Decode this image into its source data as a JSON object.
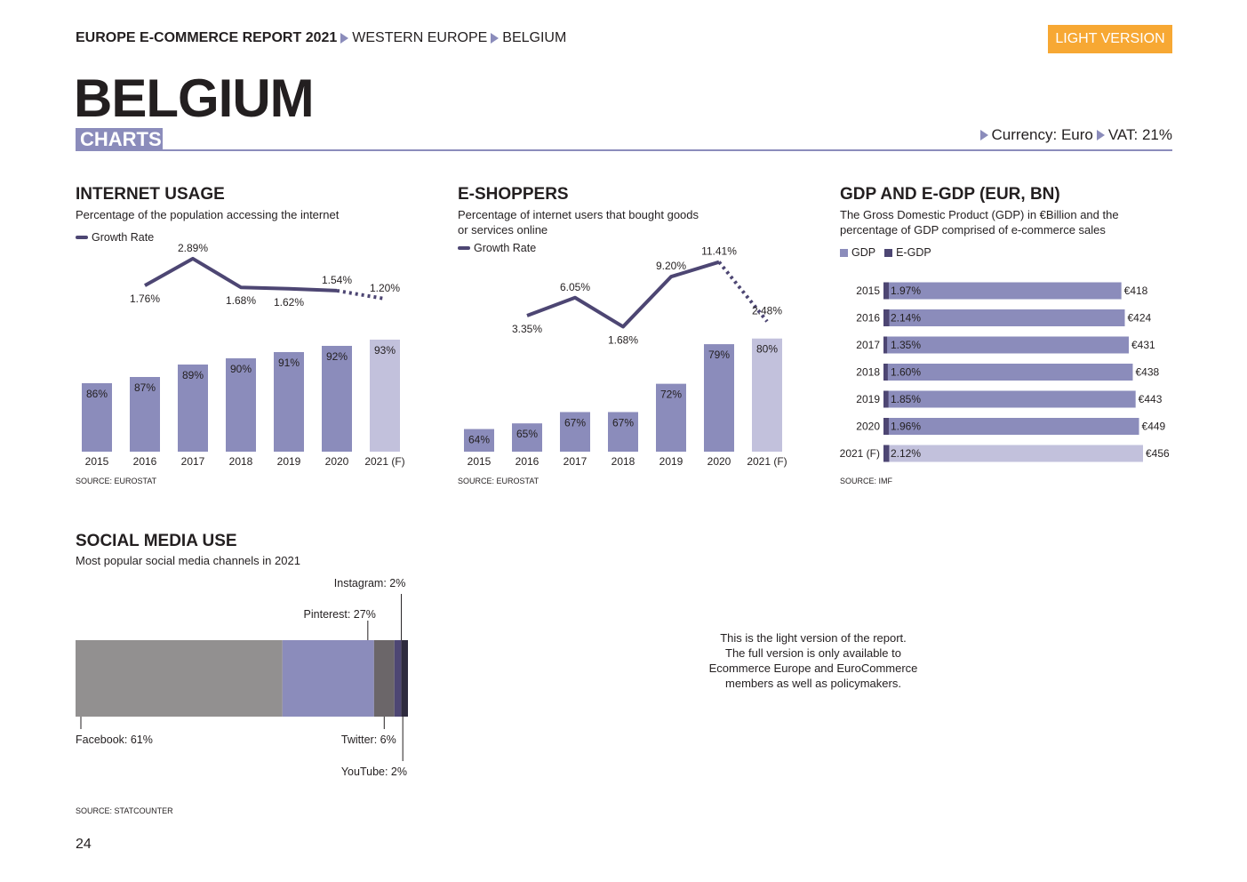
{
  "header": {
    "report_title": "EUROPE E-COMMERCE REPORT 2021",
    "crumb_region": "WESTERN EUROPE",
    "crumb_country": "BELGIUM",
    "badge": "LIGHT VERSION",
    "page_title": "BELGIUM",
    "section_tag": "CHARTS",
    "currency": "Currency: Euro",
    "vat": "VAT: 21%"
  },
  "internet_usage": {
    "title": "INTERNET USAGE",
    "subtitle": "Percentage of the population accessing the internet",
    "legend": "Growth Rate",
    "source": "SOURCE: EUROSTAT"
  },
  "eshoppers": {
    "title": "E-SHOPPERS",
    "subtitle_line1": "Percentage of internet users that bought goods",
    "subtitle_line2": "or services online",
    "legend": "Growth Rate",
    "source": "SOURCE: EUROSTAT"
  },
  "gdp": {
    "title": "GDP AND E-GDP (EUR, BN)",
    "subtitle_line1": "The Gross Domestic Product (GDP) in €Billion and the",
    "subtitle_line2": "percentage of GDP comprised of e-commerce sales",
    "legend_gdp": "GDP",
    "legend_egdp": "E-GDP",
    "source": "SOURCE: IMF"
  },
  "social": {
    "title": "SOCIAL MEDIA USE",
    "subtitle": "Most popular social media channels in 2021",
    "source": "SOURCE: STATCOUNTER"
  },
  "note": {
    "line1": "This is the light version of the report.",
    "line2": "The full version is only available to",
    "line3": "Ecommerce Europe and EuroCommerce",
    "line4": "members as well as policymakers."
  },
  "page_number": "24",
  "colors": {
    "bar": "#8b8cbb",
    "bar_forecast": "#c2c1dc",
    "line": "#4d4673",
    "accent": "#f7a833"
  },
  "chart_data": [
    {
      "id": "internet_usage",
      "type": "bar",
      "categories": [
        "2015",
        "2016",
        "2017",
        "2018",
        "2019",
        "2020",
        "2021 (F)"
      ],
      "values": [
        86,
        87,
        89,
        90,
        91,
        92,
        93
      ],
      "value_labels": [
        "86%",
        "87%",
        "89%",
        "90%",
        "91%",
        "92%",
        "93%"
      ],
      "forecast_index": 6,
      "ylim": [
        75,
        95
      ],
      "line_series": {
        "name": "Growth Rate",
        "categories": [
          "2016",
          "2017",
          "2018",
          "2019",
          "2020",
          "2021 (F)"
        ],
        "values": [
          1.76,
          2.89,
          1.68,
          1.62,
          1.54,
          1.2
        ],
        "labels": [
          "1.76%",
          "2.89%",
          "1.68%",
          "1.62%",
          "1.54%",
          "1.20%"
        ],
        "label_pos": [
          "below",
          "above",
          "below",
          "below",
          "above",
          "above"
        ]
      }
    },
    {
      "id": "eshoppers",
      "type": "bar",
      "categories": [
        "2015",
        "2016",
        "2017",
        "2018",
        "2019",
        "2020",
        "2021 (F)"
      ],
      "values": [
        64,
        65,
        67,
        67,
        72,
        79,
        80
      ],
      "value_labels": [
        "64%",
        "65%",
        "67%",
        "67%",
        "72%",
        "79%",
        "80%"
      ],
      "forecast_index": 6,
      "ylim": [
        60,
        82
      ],
      "line_series": {
        "name": "Growth Rate",
        "categories": [
          "2016",
          "2017",
          "2018",
          "2019",
          "2020",
          "2021 (F)"
        ],
        "values": [
          3.35,
          6.05,
          1.68,
          9.2,
          11.41,
          2.48
        ],
        "labels": [
          "3.35%",
          "6.05%",
          "1.68%",
          "9.20%",
          "11.41%",
          "2.48%"
        ],
        "label_pos": [
          "below",
          "above",
          "below",
          "above",
          "above",
          "above"
        ]
      }
    },
    {
      "id": "gdp",
      "type": "bar",
      "orientation": "horizontal",
      "categories": [
        "2015",
        "2016",
        "2017",
        "2018",
        "2019",
        "2020",
        "2021 (F)"
      ],
      "series": [
        {
          "name": "GDP",
          "values": [
            418,
            424,
            431,
            438,
            443,
            449,
            456
          ],
          "labels": [
            "€418",
            "€424",
            "€431",
            "€438",
            "€443",
            "€449",
            "€456"
          ]
        },
        {
          "name": "E-GDP",
          "values": [
            1.97,
            2.14,
            1.35,
            1.6,
            1.85,
            1.96,
            2.12
          ],
          "labels": [
            "1.97%",
            "2.14%",
            "1.35%",
            "1.60%",
            "1.85%",
            "1.96%",
            "2.12%"
          ]
        }
      ],
      "forecast_index": 6
    },
    {
      "id": "social",
      "type": "bar",
      "orientation": "stacked-horizontal",
      "categories": [
        "Facebook",
        "Pinterest",
        "Twitter",
        "Instagram",
        "YouTube"
      ],
      "values": [
        61,
        27,
        6,
        2,
        2
      ],
      "labels": [
        "Facebook: 61%",
        "Pinterest: 27%",
        "Twitter: 6%",
        "Instagram: 2%",
        "YouTube: 2%"
      ],
      "colors": [
        "#929090",
        "#8b8cbb",
        "#6b6669",
        "#4d4673",
        "#2e2b3e"
      ]
    }
  ]
}
